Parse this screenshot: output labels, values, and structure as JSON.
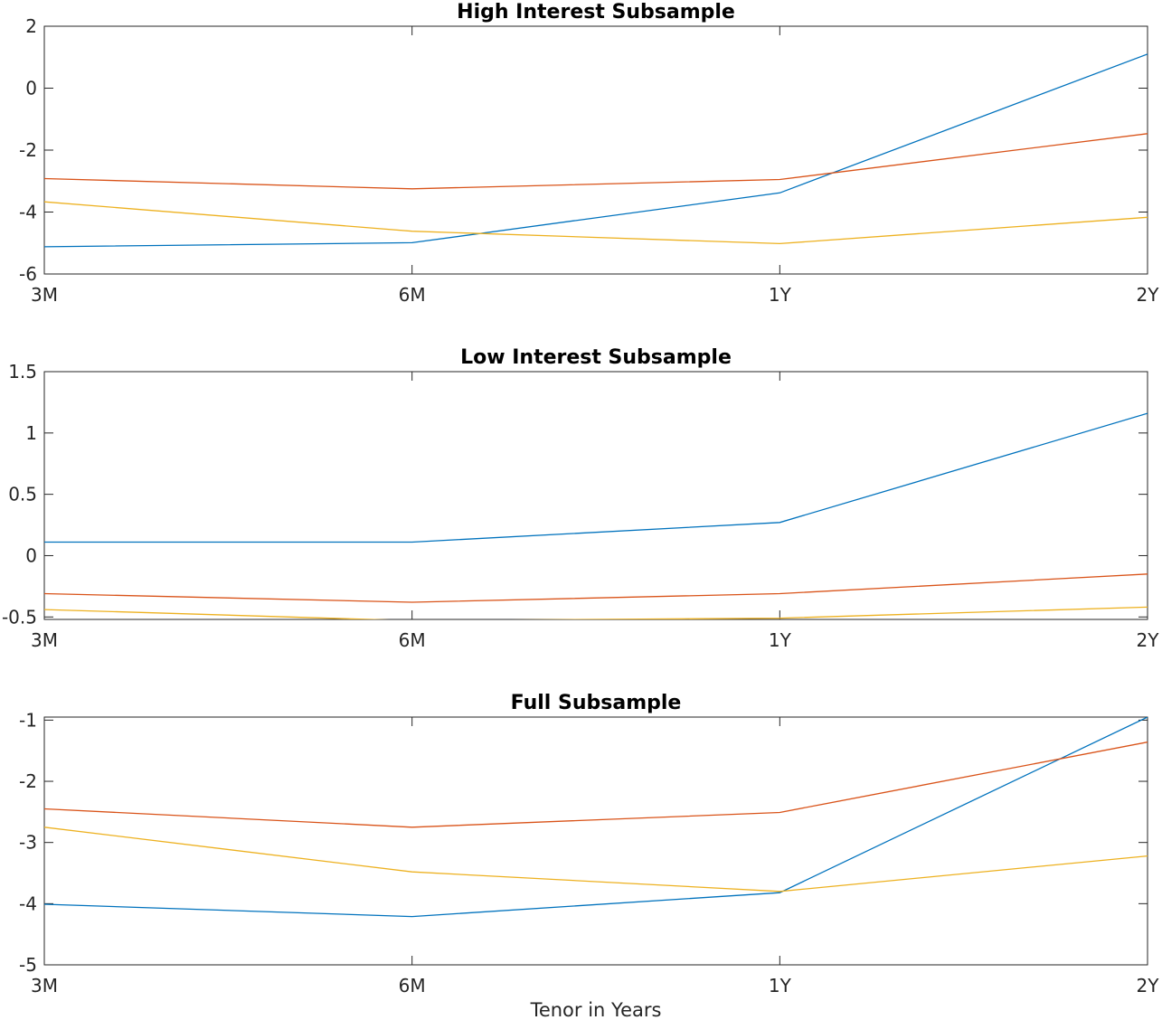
{
  "chart_data": [
    {
      "type": "line",
      "title": "High Interest Subsample",
      "xlabel": "",
      "ylabel": "",
      "categories": [
        "3M",
        "6M",
        "1Y",
        "2Y"
      ],
      "ylim": [
        -6,
        2
      ],
      "yticks": [
        "-6",
        "-4",
        "-2",
        "0",
        "2"
      ],
      "ytick_values": [
        -6,
        -4,
        -2,
        0,
        2
      ],
      "grid": false,
      "series": [
        {
          "color": "#0072BD",
          "values": [
            -5.12,
            -4.99,
            -3.38,
            1.1
          ]
        },
        {
          "color": "#D95319",
          "values": [
            -2.92,
            -3.25,
            -2.95,
            -1.47
          ]
        },
        {
          "color": "#EDB120",
          "values": [
            -3.67,
            -4.62,
            -5.02,
            -4.17
          ]
        }
      ]
    },
    {
      "type": "line",
      "title": "Low Interest Subsample",
      "xlabel": "",
      "ylabel": "",
      "categories": [
        "3M",
        "6M",
        "1Y",
        "2Y"
      ],
      "ylim": [
        -0.52,
        1.5
      ],
      "yticks": [
        "-0.5",
        "0",
        "0.5",
        "1",
        "1.5"
      ],
      "ytick_values": [
        -0.5,
        0,
        0.5,
        1,
        1.5
      ],
      "grid": false,
      "series": [
        {
          "color": "#0072BD",
          "values": [
            0.11,
            0.11,
            0.27,
            1.16
          ]
        },
        {
          "color": "#D95319",
          "values": [
            -0.31,
            -0.38,
            -0.31,
            -0.15
          ]
        },
        {
          "color": "#EDB120",
          "values": [
            -0.44,
            -0.53,
            -0.51,
            -0.42
          ]
        }
      ]
    },
    {
      "type": "line",
      "title": "Full Subsample",
      "xlabel": "Tenor in Years",
      "ylabel": "",
      "categories": [
        "3M",
        "6M",
        "1Y",
        "2Y"
      ],
      "ylim": [
        -5,
        -0.95
      ],
      "yticks": [
        "-5",
        "-4",
        "-3",
        "-2",
        "-1"
      ],
      "ytick_values": [
        -5,
        -4,
        -3,
        -2,
        -1
      ],
      "grid": false,
      "series": [
        {
          "color": "#0072BD",
          "values": [
            -4.01,
            -4.21,
            -3.82,
            -0.95
          ]
        },
        {
          "color": "#D95319",
          "values": [
            -2.45,
            -2.75,
            -2.51,
            -1.36
          ]
        },
        {
          "color": "#EDB120",
          "values": [
            -2.75,
            -3.48,
            -3.8,
            -3.22
          ]
        }
      ]
    }
  ]
}
